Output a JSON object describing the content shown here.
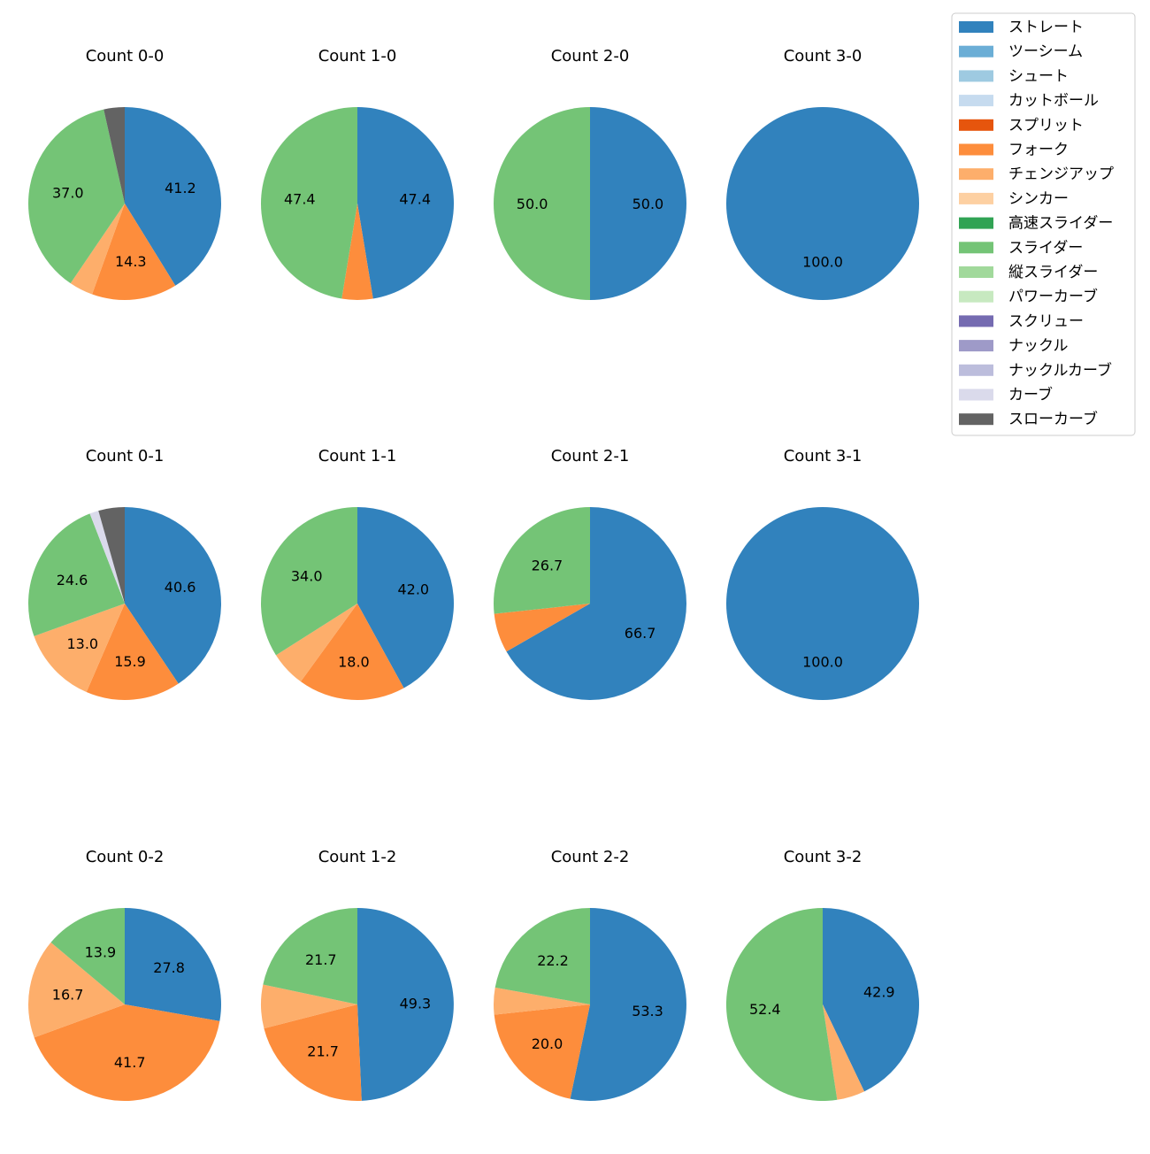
{
  "legend": {
    "items": [
      {
        "label": "ストレート",
        "color": "#3182bd"
      },
      {
        "label": "ツーシーム",
        "color": "#6baed6"
      },
      {
        "label": "シュート",
        "color": "#9ecae1"
      },
      {
        "label": "カットボール",
        "color": "#c6dbef"
      },
      {
        "label": "スプリット",
        "color": "#e6550d"
      },
      {
        "label": "フォーク",
        "color": "#fd8d3c"
      },
      {
        "label": "チェンジアップ",
        "color": "#fdae6b"
      },
      {
        "label": "シンカー",
        "color": "#fdd0a2"
      },
      {
        "label": "高速スライダー",
        "color": "#31a354"
      },
      {
        "label": "スライダー",
        "color": "#74c476"
      },
      {
        "label": "縦スライダー",
        "color": "#a1d99b"
      },
      {
        "label": "パワーカーブ",
        "color": "#c7e9c0"
      },
      {
        "label": "スクリュー",
        "color": "#756bb1"
      },
      {
        "label": "ナックル",
        "color": "#9e9ac8"
      },
      {
        "label": "ナックルカーブ",
        "color": "#bcbddc"
      },
      {
        "label": "カーブ",
        "color": "#dadaeb"
      },
      {
        "label": "スローカーブ",
        "color": "#636363"
      }
    ]
  },
  "chart_data": [
    {
      "type": "pie",
      "title": "Count 0-0",
      "labels": [
        "ストレート",
        "フォーク",
        "チェンジアップ",
        "スライダー",
        "スローカーブ"
      ],
      "values": [
        41.2,
        14.3,
        4.0,
        37.0,
        3.5
      ],
      "data_labels": [
        "41.2",
        "14.3",
        "",
        "37.0",
        ""
      ]
    },
    {
      "type": "pie",
      "title": "Count 1-0",
      "labels": [
        "ストレート",
        "フォーク",
        "スライダー"
      ],
      "values": [
        47.4,
        5.2,
        47.4
      ],
      "data_labels": [
        "47.4",
        "",
        "47.4"
      ]
    },
    {
      "type": "pie",
      "title": "Count 2-0",
      "labels": [
        "ストレート",
        "スライダー"
      ],
      "values": [
        50.0,
        50.0
      ],
      "data_labels": [
        "50.0",
        "50.0"
      ]
    },
    {
      "type": "pie",
      "title": "Count 3-0",
      "labels": [
        "ストレート"
      ],
      "values": [
        100.0
      ],
      "data_labels": [
        "100.0"
      ]
    },
    {
      "type": "pie",
      "title": "Count 0-1",
      "labels": [
        "ストレート",
        "フォーク",
        "チェンジアップ",
        "スライダー",
        "カーブ",
        "スローカーブ"
      ],
      "values": [
        40.6,
        15.9,
        13.0,
        24.6,
        1.5,
        4.4
      ],
      "data_labels": [
        "40.6",
        "15.9",
        "13.0",
        "24.6",
        "",
        ""
      ]
    },
    {
      "type": "pie",
      "title": "Count 1-1",
      "labels": [
        "ストレート",
        "フォーク",
        "チェンジアップ",
        "スライダー"
      ],
      "values": [
        42.0,
        18.0,
        6.0,
        34.0
      ],
      "data_labels": [
        "42.0",
        "18.0",
        "",
        "34.0"
      ]
    },
    {
      "type": "pie",
      "title": "Count 2-1",
      "labels": [
        "ストレート",
        "フォーク",
        "スライダー"
      ],
      "values": [
        66.7,
        6.6,
        26.7
      ],
      "data_labels": [
        "66.7",
        "",
        "26.7"
      ]
    },
    {
      "type": "pie",
      "title": "Count 3-1",
      "labels": [
        "ストレート"
      ],
      "values": [
        100.0
      ],
      "data_labels": [
        "100.0"
      ]
    },
    {
      "type": "pie",
      "title": "Count 0-2",
      "labels": [
        "ストレート",
        "フォーク",
        "チェンジアップ",
        "スライダー"
      ],
      "values": [
        27.8,
        41.7,
        16.7,
        13.9
      ],
      "data_labels": [
        "27.8",
        "41.7",
        "16.7",
        "13.9"
      ]
    },
    {
      "type": "pie",
      "title": "Count 1-2",
      "labels": [
        "ストレート",
        "フォーク",
        "チェンジアップ",
        "スライダー"
      ],
      "values": [
        49.3,
        21.7,
        7.3,
        21.7
      ],
      "data_labels": [
        "49.3",
        "21.7",
        "",
        "21.7"
      ]
    },
    {
      "type": "pie",
      "title": "Count 2-2",
      "labels": [
        "ストレート",
        "フォーク",
        "チェンジアップ",
        "スライダー"
      ],
      "values": [
        53.3,
        20.0,
        4.5,
        22.2
      ],
      "data_labels": [
        "53.3",
        "20.0",
        "",
        "22.2"
      ]
    },
    {
      "type": "pie",
      "title": "Count 3-2",
      "labels": [
        "ストレート",
        "チェンジアップ",
        "スライダー"
      ],
      "values": [
        42.9,
        4.7,
        52.4
      ],
      "data_labels": [
        "42.9",
        "",
        "52.4"
      ]
    }
  ]
}
